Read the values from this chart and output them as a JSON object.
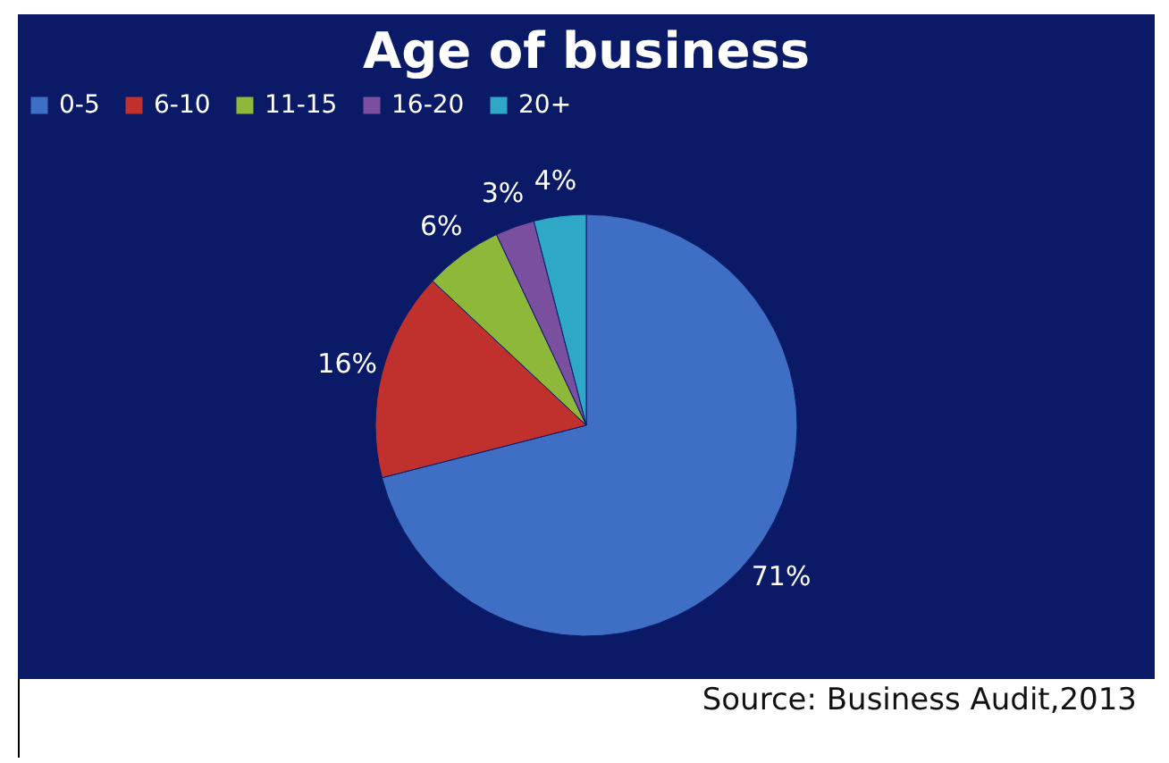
{
  "chart_data": {
    "type": "pie",
    "title": "Age of business",
    "categories": [
      "0-5",
      "6-10",
      "11-15",
      "16-20",
      "20+"
    ],
    "values": [
      71,
      16,
      6,
      3,
      4
    ],
    "colors": [
      "#3f6fc4",
      "#c0302c",
      "#8db83a",
      "#7a4fa0",
      "#2fa8c8"
    ],
    "value_labels": [
      "71%",
      "16%",
      "6%",
      "3%",
      "4%"
    ],
    "legend": "top",
    "annotations": [
      "Source: Business Audit,2013"
    ]
  }
}
